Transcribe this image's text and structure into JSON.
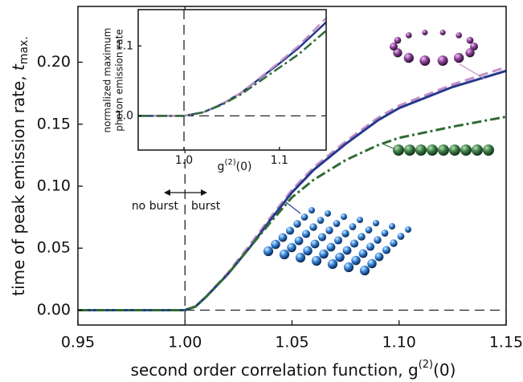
{
  "chart_data": [
    {
      "type": "line",
      "ylabel": {
        "text": "time of peak emission rate, ",
        "symbol": "t",
        "subscript": "max."
      },
      "xlabel": {
        "text": "second order correlation function, ",
        "symbol": "g",
        "superscript": "(2)",
        "argument": "(0)"
      },
      "annotations": [
        "no burst",
        "burst"
      ],
      "xlim": [
        0.95,
        1.15
      ],
      "ylim": [
        -0.012,
        0.245
      ],
      "xticks": [
        0.95,
        {
          "value": 1.0,
          "label": "1.00"
        },
        1.05,
        {
          "value": 1.1,
          "label": "1.10"
        },
        1.15
      ],
      "yticks": [
        {
          "value": 0,
          "label": "0.00"
        },
        0.05,
        {
          "value": 0.1,
          "label": "0.10"
        },
        0.15,
        {
          "value": 0.2,
          "label": "0.20"
        }
      ],
      "reference_lines": {
        "x": 1.0,
        "y": 0
      },
      "x": [
        0.95,
        1.0,
        1.005,
        1.01,
        1.02,
        1.03,
        1.04,
        1.05,
        1.06,
        1.075,
        1.09,
        1.1,
        1.125,
        1.15
      ],
      "series": [
        {
          "color": "#c38fc8",
          "style": "dashed",
          "values": [
            0,
            0,
            0.003,
            0.011,
            0.03,
            0.052,
            0.075,
            0.097,
            0.115,
            0.136,
            0.155,
            0.165,
            0.182,
            0.196
          ]
        },
        {
          "color": "#253a8c",
          "style": "solid",
          "values": [
            0,
            0,
            0.003,
            0.011,
            0.029,
            0.05,
            0.073,
            0.095,
            0.113,
            0.134,
            0.153,
            0.163,
            0.18,
            0.193
          ]
        },
        {
          "color": "#2f6b35",
          "style": "dashdot",
          "values": [
            0,
            0,
            0.003,
            0.011,
            0.029,
            0.05,
            0.071,
            0.091,
            0.105,
            0.121,
            0.133,
            0.139,
            0.148,
            0.156
          ]
        }
      ]
    },
    {
      "type": "line",
      "ylabel": [
        "normalized maximum",
        "photon emission rate"
      ],
      "xlabel": {
        "symbol": "g",
        "superscript": "(2)",
        "argument": "(0)"
      },
      "xlim": [
        0.952,
        1.149
      ],
      "ylim": [
        0.951,
        1.152
      ],
      "xticks": [
        {
          "value": 1.0,
          "label": "1.0"
        },
        1.1
      ],
      "yticks": [
        {
          "value": 1.0,
          "label": "1.0"
        },
        1.1
      ],
      "reference_lines": {
        "x": 1.0,
        "y": 1.0
      },
      "x": [
        0.952,
        1.0,
        1.02,
        1.04,
        1.06,
        1.08,
        1.1,
        1.12,
        1.149
      ],
      "series": [
        {
          "color": "#253a8c",
          "style": "solid",
          "values": [
            1.0,
            1.0,
            1.005,
            1.017,
            1.033,
            1.054,
            1.075,
            1.097,
            1.134
          ]
        },
        {
          "color": "#c38fc8",
          "style": "dashed",
          "values": [
            1.0,
            1.0,
            1.005,
            1.017,
            1.033,
            1.055,
            1.077,
            1.1,
            1.14
          ]
        },
        {
          "color": "#2f6b35",
          "style": "dashdot",
          "values": [
            1.0,
            1.0,
            1.005,
            1.016,
            1.031,
            1.05,
            1.069,
            1.088,
            1.122
          ]
        }
      ]
    }
  ]
}
